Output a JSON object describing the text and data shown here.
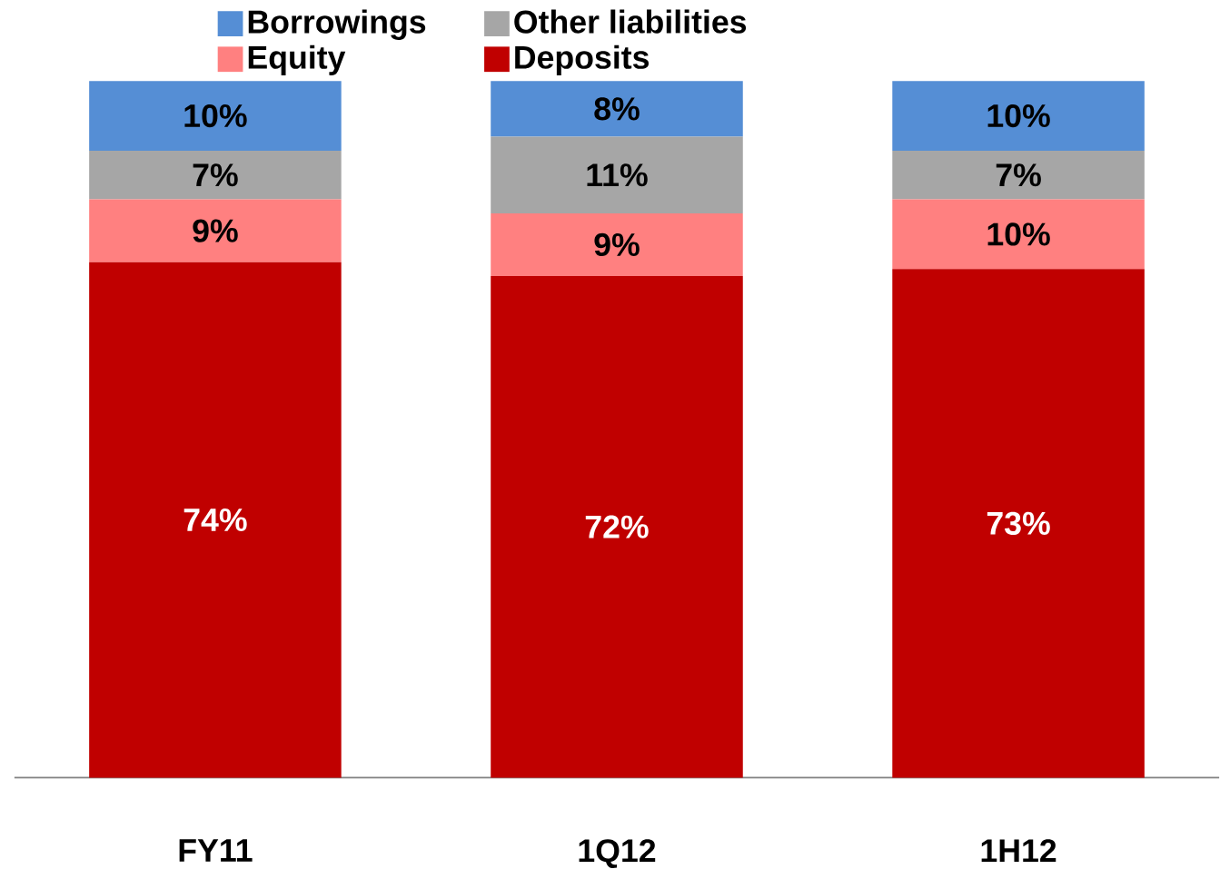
{
  "chart_data": {
    "type": "bar",
    "stacked": true,
    "legend": "top",
    "categories": [
      "FY11",
      "1Q12",
      "1H12"
    ],
    "series": [
      {
        "name": "Deposits",
        "color": "#c00000",
        "values": [
          74,
          72,
          73
        ],
        "value_labels": [
          "74%",
          "72%",
          "73%"
        ]
      },
      {
        "name": "Equity",
        "color": "#ff8080",
        "values": [
          9,
          9,
          10
        ],
        "value_labels": [
          "9%",
          "9%",
          "10%"
        ]
      },
      {
        "name": "Other liabilities",
        "color": "#a6a6a6",
        "values": [
          7,
          11,
          7
        ],
        "value_labels": [
          "7%",
          "11%",
          "7%"
        ]
      },
      {
        "name": "Borrowings",
        "color": "#558ed5",
        "values": [
          10,
          8,
          10
        ],
        "value_labels": [
          "10%",
          "8%",
          "10%"
        ]
      }
    ]
  }
}
